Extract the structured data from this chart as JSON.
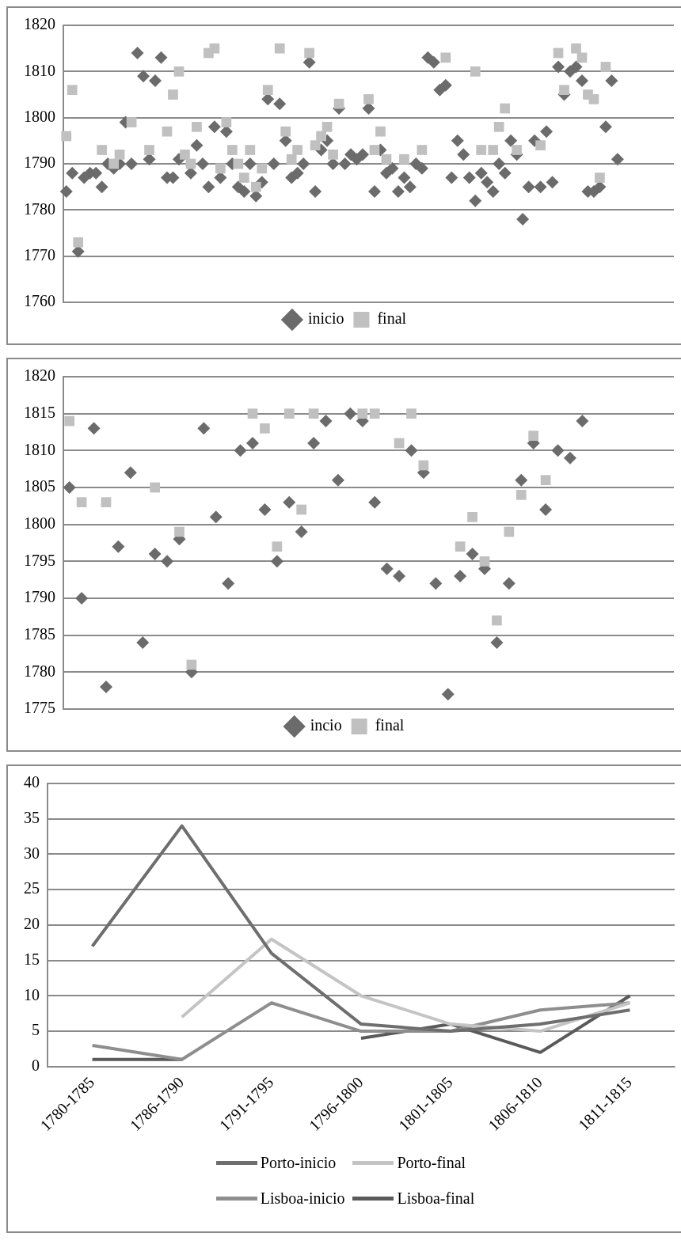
{
  "chart_data": [
    {
      "type": "scatter",
      "categories": [
        null,
        null,
        null,
        null,
        null,
        null,
        null,
        null,
        null,
        null,
        null,
        null,
        null,
        null,
        null,
        null,
        null,
        null,
        null,
        null,
        null,
        null,
        null,
        null,
        null,
        null,
        null,
        null,
        null,
        null,
        null,
        null,
        null,
        null,
        null,
        null,
        null,
        null,
        null,
        null,
        null,
        null,
        null,
        null,
        null,
        null,
        null,
        null,
        null,
        null,
        null,
        null,
        null,
        null,
        null,
        null,
        null,
        null,
        null,
        null,
        null,
        null,
        null,
        null,
        null,
        null,
        null,
        null,
        null,
        null,
        null,
        null,
        null,
        null,
        null,
        null,
        null,
        null,
        null,
        null,
        null,
        null,
        null,
        null,
        null,
        null,
        null,
        null,
        null,
        null,
        null,
        null,
        null,
        null,
        null,
        null,
        null,
        null,
        null,
        null,
        null,
        null,
        null
      ],
      "ylim": [
        1760,
        1820
      ],
      "yticks": [
        1760,
        1770,
        1780,
        1790,
        1800,
        1810,
        1820
      ],
      "grid": "y",
      "legend": "bottom",
      "tick_labels": "y",
      "series": [
        {
          "name": "inicio",
          "color": "#6b6b6b",
          "marker": "diamond",
          "values": [
            1784,
            1788,
            1771,
            1787,
            1788,
            1788,
            1785,
            1790,
            1789,
            1790,
            1799,
            1790,
            1814,
            1809,
            1791,
            1808,
            1813,
            1787,
            1787,
            1791,
            null,
            1788,
            1794,
            1790,
            1785,
            1798,
            1787,
            1797,
            1790,
            1785,
            1784,
            1790,
            1783,
            1786,
            1804,
            1790,
            1803,
            1795,
            1787,
            1788,
            1790,
            1812,
            1784,
            1793,
            1795,
            1790,
            1802,
            1790,
            1792,
            1791,
            1792,
            1802,
            1784,
            1793,
            1788,
            1789,
            1784,
            1787,
            1785,
            1790,
            1789,
            1813,
            1812,
            1806,
            1807,
            1787,
            1795,
            1792,
            1787,
            1782,
            1788,
            1786,
            1784,
            1790,
            1788,
            1795,
            1792,
            1778,
            1785,
            1795,
            1785,
            1797,
            1786,
            1811,
            1805,
            1810,
            1811,
            1808,
            1784,
            1784,
            1785,
            1798,
            1808,
            1791,
            null,
            null,
            null,
            null,
            null,
            null,
            null,
            null,
            null
          ]
        },
        {
          "name": "final",
          "color": "#c0c0c0",
          "marker": "square",
          "values": [
            1796,
            1806,
            1773,
            null,
            null,
            null,
            1793,
            null,
            1790,
            1792,
            null,
            1799,
            null,
            null,
            1793,
            null,
            null,
            1797,
            1805,
            1810,
            1792,
            1790,
            1798,
            null,
            1814,
            1815,
            1789,
            1799,
            1793,
            1790,
            1787,
            1793,
            1785,
            1789,
            1806,
            null,
            1815,
            1797,
            1791,
            1793,
            null,
            1814,
            1794,
            1796,
            1798,
            1792,
            1803,
            null,
            null,
            null,
            null,
            1804,
            1793,
            1797,
            1791,
            null,
            null,
            1791,
            null,
            null,
            1793,
            null,
            null,
            null,
            1813,
            null,
            null,
            null,
            null,
            1810,
            1793,
            null,
            1793,
            1798,
            1802,
            null,
            1793,
            null,
            null,
            null,
            1794,
            null,
            null,
            1814,
            1806,
            null,
            1815,
            1813,
            1805,
            1804,
            1787,
            1811,
            null,
            null,
            null,
            null,
            null,
            null,
            null,
            null,
            null,
            null,
            null
          ]
        }
      ]
    },
    {
      "type": "scatter",
      "categories": [
        null,
        null,
        null,
        null,
        null,
        null,
        null,
        null,
        null,
        null,
        null,
        null,
        null,
        null,
        null,
        null,
        null,
        null,
        null,
        null,
        null,
        null,
        null,
        null,
        null,
        null,
        null,
        null,
        null,
        null,
        null,
        null,
        null,
        null,
        null,
        null,
        null,
        null,
        null,
        null,
        null,
        null,
        null,
        null,
        null,
        null,
        null,
        null,
        null,
        null
      ],
      "ylim": [
        1775,
        1820
      ],
      "yticks": [
        1775,
        1780,
        1785,
        1790,
        1795,
        1800,
        1805,
        1810,
        1815,
        1820
      ],
      "grid": "y",
      "legend": "bottom",
      "tick_labels": "y",
      "series": [
        {
          "name": "incio",
          "color": "#6b6b6b",
          "marker": "diamond",
          "values": [
            1805,
            1790,
            1813,
            1778,
            1797,
            1807,
            1784,
            1796,
            1795,
            1798,
            1780,
            1813,
            1801,
            1792,
            1810,
            1811,
            1802,
            1795,
            1803,
            1799,
            1811,
            1814,
            1806,
            1815,
            1814,
            1803,
            1794,
            1793,
            1810,
            1807,
            1792,
            1777,
            1793,
            1796,
            1794,
            1784,
            1792,
            1806,
            1811,
            1802,
            1810,
            1809,
            1814,
            null,
            null,
            null,
            null,
            null,
            null,
            null
          ]
        },
        {
          "name": "final",
          "color": "#c0c0c0",
          "marker": "square",
          "values": [
            1814,
            1803,
            null,
            1803,
            null,
            null,
            null,
            1805,
            null,
            1799,
            1781,
            null,
            null,
            null,
            null,
            1815,
            1813,
            1797,
            1815,
            1802,
            1815,
            null,
            null,
            null,
            1815,
            1815,
            null,
            1811,
            1815,
            1808,
            null,
            null,
            1797,
            1801,
            1795,
            1787,
            1799,
            1804,
            1812,
            1806,
            null,
            null,
            null,
            null,
            null,
            null,
            null,
            null,
            null,
            null
          ]
        }
      ]
    },
    {
      "type": "line",
      "categories": [
        "1780-1785",
        "1786-1790",
        "1791-1795",
        "1796-1800",
        "1801-1805",
        "1806-1810",
        "1811-1815"
      ],
      "ylim": [
        0,
        40
      ],
      "yticks": [
        0,
        5,
        10,
        15,
        20,
        25,
        30,
        35,
        40
      ],
      "grid": "y",
      "legend": "bottom",
      "marker": "none",
      "series": [
        {
          "name": "Porto-inicio",
          "color": "#6e6e6e",
          "values": [
            17,
            34,
            16,
            6,
            5,
            6,
            8
          ]
        },
        {
          "name": "Porto-final",
          "color": "#c4c4c4",
          "values": [
            null,
            7,
            18,
            10,
            6,
            5,
            9
          ]
        },
        {
          "name": "Lisboa-inicio",
          "color": "#8e8e8e",
          "values": [
            3,
            1,
            9,
            5,
            5,
            8,
            9
          ]
        },
        {
          "name": "Lisboa-final",
          "color": "#5a5a5a",
          "values": [
            1,
            1,
            null,
            4,
            6,
            2,
            10
          ]
        }
      ]
    }
  ]
}
